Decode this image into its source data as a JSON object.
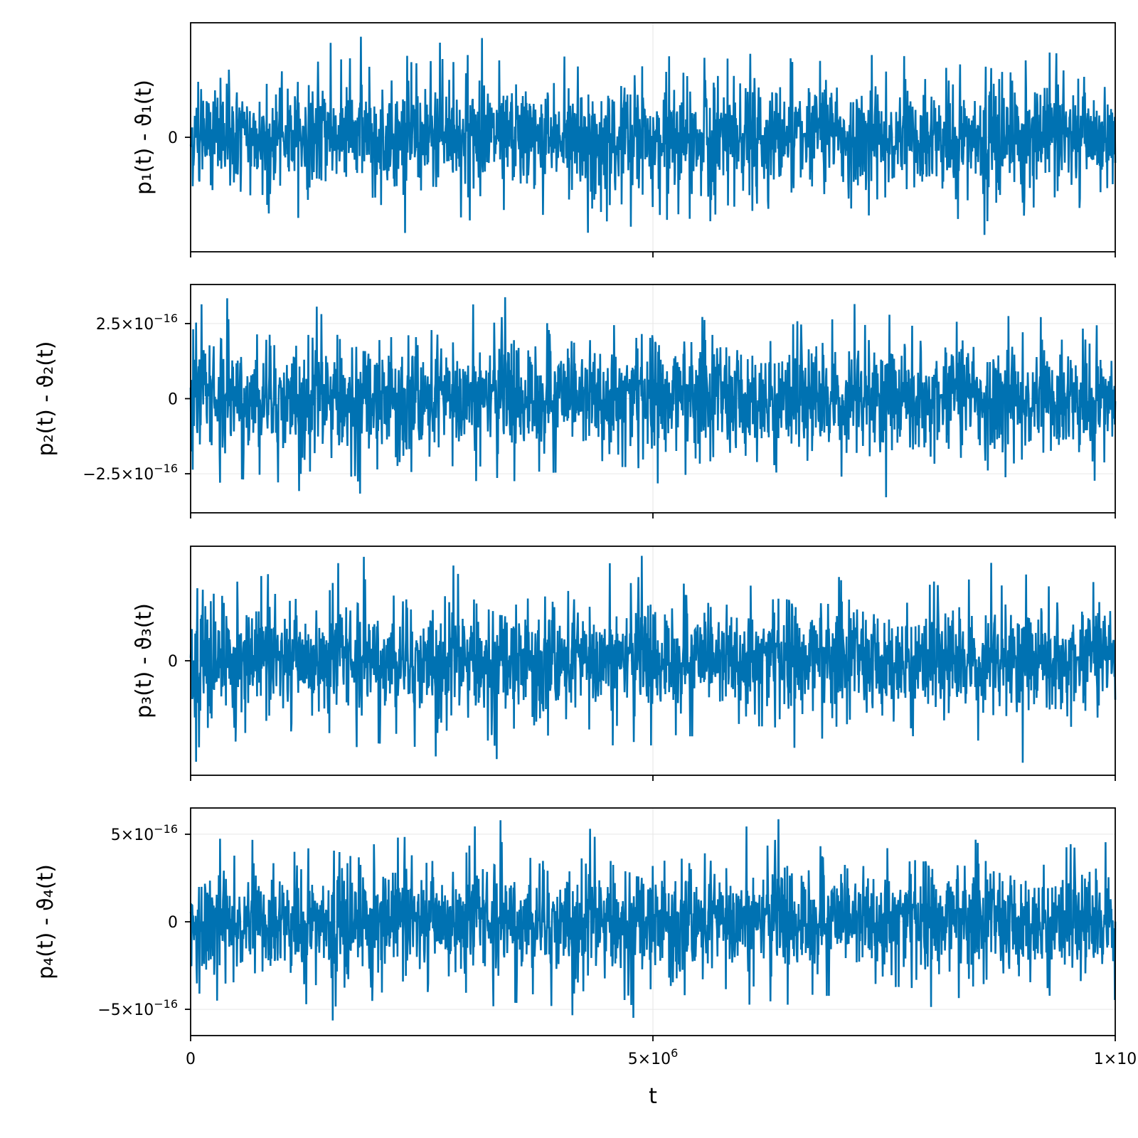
{
  "chart_data": [
    {
      "type": "line",
      "ylabel": "p₁(t) - ϑ₁(t)",
      "xlim": [
        0,
        10000000
      ],
      "ylim": [
        -6.5e-16,
        6.5e-16
      ],
      "yticks": [
        {
          "value": 0,
          "label": "0"
        }
      ],
      "xticks": [
        0,
        5000000,
        10000000
      ],
      "envelope": {
        "core_amplitude": 1.8e-16,
        "peak_amplitude": 5.8e-16,
        "color": "#0072b2"
      },
      "series": [
        {
          "values_summary": "noise centered at 0"
        }
      ]
    },
    {
      "type": "line",
      "ylabel": "p₂(t) - ϑ₂(t)",
      "xlim": [
        0,
        10000000
      ],
      "ylim": [
        -3.8e-16,
        3.8e-16
      ],
      "yticks": [
        {
          "value": 2.5e-16,
          "label": "2.5×10",
          "exp": "−16"
        },
        {
          "value": 0,
          "label": "0"
        },
        {
          "value": -2.5e-16,
          "label": "−2.5×10",
          "exp": "−16"
        }
      ],
      "xticks": [
        0,
        5000000,
        10000000
      ],
      "envelope": {
        "core_amplitude": 1.1e-16,
        "peak_amplitude": 3.4e-16,
        "color": "#0072b2"
      },
      "series": [
        {
          "values_summary": "noise centered at 0"
        }
      ]
    },
    {
      "type": "line",
      "ylabel": "p₃(t) - ϑ₃(t)",
      "xlim": [
        0,
        10000000
      ],
      "ylim": [
        -6.5e-16,
        6.5e-16
      ],
      "yticks": [
        {
          "value": 0,
          "label": "0"
        }
      ],
      "xticks": [
        0,
        5000000,
        10000000
      ],
      "envelope": {
        "core_amplitude": 1.8e-16,
        "peak_amplitude": 6e-16,
        "color": "#0072b2"
      },
      "series": [
        {
          "values_summary": "noise centered at 0"
        }
      ]
    },
    {
      "type": "line",
      "ylabel": "p₄(t) - ϑ₄(t)",
      "xlabel": "t",
      "xlim": [
        0,
        10000000
      ],
      "ylim": [
        -6.5e-16,
        6.5e-16
      ],
      "yticks": [
        {
          "value": 5e-16,
          "label": "5×10",
          "exp": "−16"
        },
        {
          "value": 0,
          "label": "0"
        },
        {
          "value": -5e-16,
          "label": "−5×10",
          "exp": "−16"
        }
      ],
      "xticks": [
        {
          "value": 0,
          "label": "0"
        },
        {
          "value": 5000000,
          "label": "5×10",
          "exp": "6"
        },
        {
          "value": 10000000,
          "label": "1×10"
        }
      ],
      "envelope": {
        "core_amplitude": 1.8e-16,
        "peak_amplitude": 5.9e-16,
        "color": "#0072b2"
      },
      "series": [
        {
          "values_summary": "noise centered at 0"
        }
      ]
    }
  ],
  "colors": {
    "line": "#0072b2",
    "grid": "#e6e6e6",
    "frame": "#000000"
  }
}
